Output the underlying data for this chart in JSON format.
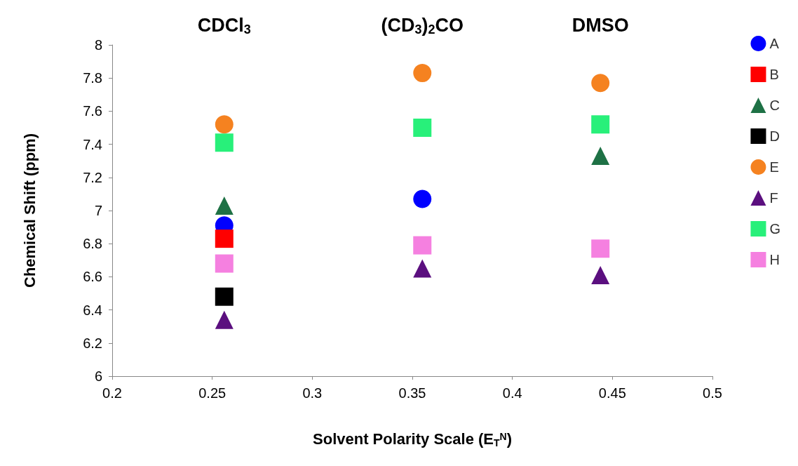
{
  "chart_data": {
    "type": "scatter",
    "xlabel": "Solvent Polarity Scale (E$_{T}$$^{N}$)",
    "ylabel": "Chemical Shift (ppm)",
    "xlim": [
      0.2,
      0.5
    ],
    "xticks": [
      0.2,
      0.25,
      0.3,
      0.35,
      0.4,
      0.45,
      0.5
    ],
    "ylim": [
      6,
      8
    ],
    "yticks": [
      6,
      6.2,
      6.4,
      6.6,
      6.8,
      7,
      7.2,
      7.4,
      7.6,
      7.8,
      8
    ],
    "grid": false,
    "legend": "right",
    "annotations": [
      "CDCl$_{3}$",
      "(CD$_{3}$)$_{2}$CO",
      "DMSO"
    ],
    "series": [
      {
        "name": "A",
        "color": "#0000ff",
        "marker": "circle",
        "x": [
          0.256,
          0.355
        ],
        "values": [
          6.91,
          7.07
        ]
      },
      {
        "name": "B",
        "color": "#ff0000",
        "marker": "square",
        "x": [
          0.256
        ],
        "values": [
          6.83
        ]
      },
      {
        "name": "C",
        "color": "#1e7145",
        "marker": "triangle",
        "x": [
          0.256,
          0.444
        ],
        "values": [
          7.03,
          7.33
        ]
      },
      {
        "name": "D",
        "color": "#000000",
        "marker": "square",
        "x": [
          0.256
        ],
        "values": [
          6.48
        ]
      },
      {
        "name": "E",
        "color": "#f58220",
        "marker": "circle",
        "x": [
          0.256,
          0.355,
          0.444
        ],
        "values": [
          7.52,
          7.83,
          7.77
        ]
      },
      {
        "name": "F",
        "color": "#5b0f7f",
        "marker": "triangle",
        "x": [
          0.256,
          0.355,
          0.444
        ],
        "values": [
          6.34,
          6.65,
          6.61
        ]
      },
      {
        "name": "G",
        "color": "#28f07a",
        "marker": "square",
        "x": [
          0.256,
          0.355,
          0.444
        ],
        "values": [
          7.41,
          7.5,
          7.52
        ]
      },
      {
        "name": "H",
        "color": "#f580e0",
        "marker": "square",
        "x": [
          0.256,
          0.355,
          0.444
        ],
        "values": [
          6.68,
          6.79,
          6.77
        ]
      }
    ]
  }
}
